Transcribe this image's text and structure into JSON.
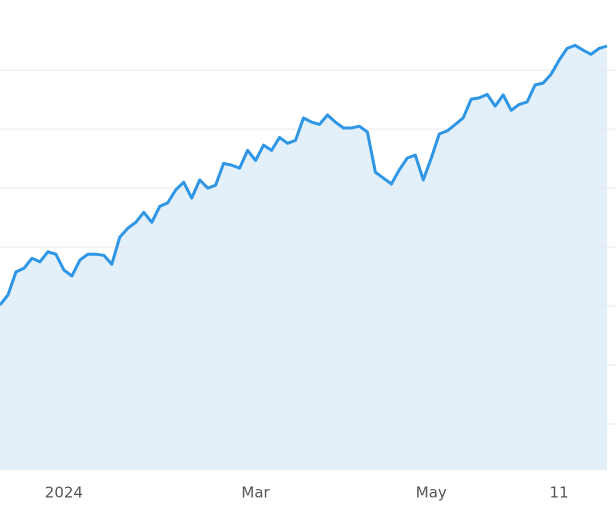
{
  "chart_data": {
    "type": "area",
    "categories": [
      null,
      null,
      null,
      null,
      null,
      null,
      null,
      null,
      "2024",
      null,
      null,
      null,
      null,
      null,
      null,
      null,
      null,
      null,
      null,
      null,
      null,
      null,
      null,
      null,
      null,
      null,
      null,
      null,
      null,
      null,
      null,
      null,
      "Mar",
      null,
      null,
      null,
      null,
      null,
      null,
      null,
      null,
      null,
      null,
      null,
      null,
      null,
      null,
      null,
      null,
      null,
      null,
      null,
      null,
      null,
      "May",
      null,
      null,
      null,
      null,
      null,
      null,
      null,
      null,
      null,
      null,
      null,
      null,
      null,
      null,
      null,
      "11",
      null,
      null,
      null,
      null,
      null,
      null
    ],
    "series": [
      {
        "color": "#2f96e6",
        "fill": "#e3eff9",
        "values": [
          3.02,
          3.19,
          3.58,
          3.64,
          3.81,
          3.75,
          3.92,
          3.88,
          3.61,
          3.51,
          3.78,
          3.88,
          3.88,
          3.86,
          3.71,
          4.17,
          4.32,
          4.42,
          4.59,
          4.42,
          4.69,
          4.75,
          4.97,
          5.1,
          4.83,
          5.14,
          5.0,
          5.05,
          5.42,
          5.39,
          5.34,
          5.64,
          5.47,
          5.73,
          5.64,
          5.86,
          5.76,
          5.81,
          6.19,
          6.12,
          6.08,
          6.24,
          6.12,
          6.02,
          6.02,
          6.05,
          5.95,
          5.27,
          5.17,
          5.07,
          5.31,
          5.51,
          5.56,
          5.14,
          5.51,
          5.92,
          5.97,
          6.08,
          6.19,
          6.51,
          6.53,
          6.59,
          6.39,
          6.58,
          6.32,
          6.42,
          6.46,
          6.75,
          6.78,
          6.93,
          7.17,
          7.37,
          7.42,
          7.34,
          7.27,
          7.37,
          7.41
        ]
      }
    ],
    "ylim": [
      0.22,
      8.19
    ],
    "yticks": [
      1,
      2,
      3,
      4,
      5,
      6,
      7
    ],
    "grid": true
  }
}
